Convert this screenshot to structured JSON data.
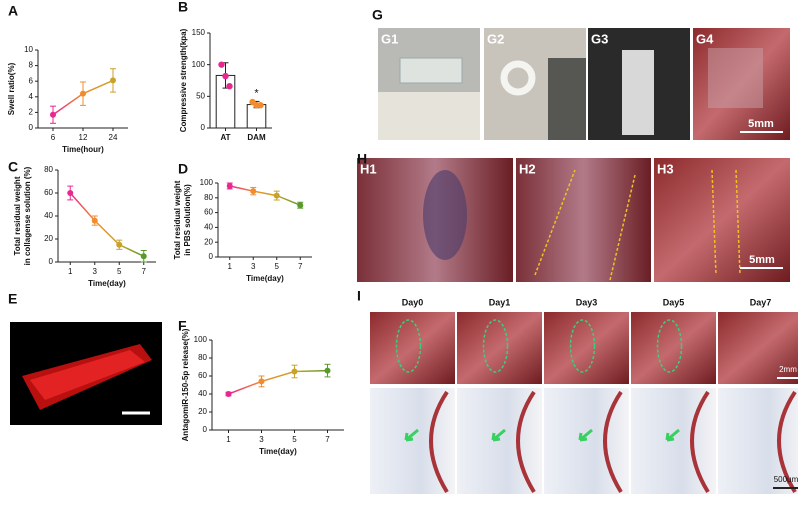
{
  "chart_data": [
    {
      "type": "line",
      "panel": "A",
      "x_label": "Time(hour)",
      "y_label": "Swell ratio(%)",
      "categories": [
        "6",
        "12",
        "24"
      ],
      "series": [
        {
          "values": [
            1.7,
            4.4,
            6.1
          ],
          "errors": [
            1.1,
            1.5,
            1.5
          ],
          "colors": [
            "#e8288f",
            "#f08c2e",
            "#c9a22a"
          ]
        }
      ],
      "ylim": [
        0,
        10
      ],
      "yticks": [
        0,
        2,
        4,
        6,
        8,
        10
      ]
    },
    {
      "type": "bar",
      "panel": "B",
      "y_label": "Compressive strength(kpa)",
      "categories": [
        "AT",
        "DAM"
      ],
      "values": [
        83,
        37
      ],
      "errors": [
        20,
        5
      ],
      "points": [
        [
          100,
          82,
          66
        ],
        [
          41,
          36,
          36
        ]
      ],
      "colors": [
        "#e8288f",
        "#f08c2e"
      ],
      "annotation": "*",
      "ylim": [
        0,
        150
      ],
      "yticks": [
        0,
        50,
        100,
        150
      ]
    },
    {
      "type": "line",
      "panel": "C",
      "x_label": "Time(day)",
      "y_label": [
        "Total residual weight",
        "in collagense solution (%)"
      ],
      "categories": [
        "1",
        "3",
        "5",
        "7"
      ],
      "series": [
        {
          "values": [
            60,
            36,
            15,
            5
          ],
          "errors": [
            6,
            4,
            4,
            5
          ],
          "colors": [
            "#e8288f",
            "#f08c2e",
            "#c9a22a",
            "#5a9a2a"
          ]
        }
      ],
      "ylim": [
        0,
        80
      ],
      "yticks": [
        0,
        20,
        40,
        60,
        80
      ]
    },
    {
      "type": "line",
      "panel": "D",
      "x_label": "Time(day)",
      "y_label": [
        "Total residual weight",
        "in PBS solution(%)"
      ],
      "categories": [
        "1",
        "3",
        "5",
        "7"
      ],
      "series": [
        {
          "values": [
            96,
            89,
            83,
            70
          ],
          "errors": [
            4,
            5,
            6,
            4
          ],
          "colors": [
            "#e8288f",
            "#f08c2e",
            "#c9a22a",
            "#5a9a2a"
          ]
        }
      ],
      "ylim": [
        0,
        100
      ],
      "yticks": [
        0,
        20,
        40,
        60,
        80,
        100
      ]
    },
    {
      "type": "line",
      "panel": "F",
      "x_label": "Time(day)",
      "y_label": "AntagomiR-150-5p release(%)",
      "categories": [
        "1",
        "3",
        "5",
        "7"
      ],
      "series": [
        {
          "values": [
            40,
            54,
            65,
            66
          ],
          "errors": [
            2,
            6,
            7,
            7
          ],
          "colors": [
            "#e8288f",
            "#f08c2e",
            "#c9a22a",
            "#5a9a2a"
          ]
        }
      ],
      "ylim": [
        0,
        100
      ],
      "yticks": [
        0,
        20,
        40,
        60,
        80,
        100
      ]
    }
  ],
  "images": {
    "E": {
      "panel": "E"
    },
    "G": {
      "panel": "G",
      "labels": [
        "G1",
        "G2",
        "G3",
        "G4"
      ],
      "scale": "5mm"
    },
    "H": {
      "panel": "H",
      "labels": [
        "H1",
        "H2",
        "H3"
      ],
      "scale": "5mm"
    },
    "I": {
      "panel": "I",
      "days": [
        "Day0",
        "Day1",
        "Day3",
        "Day5",
        "Day7"
      ],
      "scale_top": "2mm",
      "scale_bottom": "500μm"
    }
  }
}
